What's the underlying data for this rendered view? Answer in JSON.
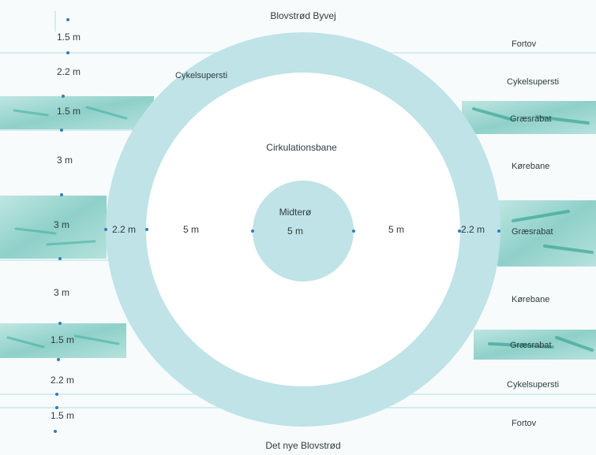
{
  "streets": {
    "top": "Blovstrød Byvej",
    "bottom": "Det nye Blovstrød"
  },
  "labels": {
    "cycle_path_ring": "Cykelsupersti",
    "circulation_lane": "Cirkulationsbane",
    "center_island": "Midterø",
    "center_island_width": "5 m",
    "lane_width_left": "5 m",
    "lane_width_right": "5 m",
    "ring_width_left": "2.2 m",
    "ring_width_right": "2.2 m"
  },
  "left_widths": [
    "1.5 m",
    "2.2 m",
    "1.5 m",
    "3 m",
    "3 m",
    "3 m",
    "1.5 m",
    "2.2 m",
    "1.5 m"
  ],
  "right_labels": [
    "Fortov",
    "Cykelsupersti",
    "Græsrabat",
    "Kørebane",
    "Græsrabat",
    "Kørebane",
    "Græsrabat",
    "Cykelsupersti",
    "Fortov"
  ],
  "colors": {
    "background": "#f7fbfb",
    "ring": "#bfe3e6",
    "grass": "#9fd6d2",
    "grass_dark": "#3cae9e",
    "dot": "#2f7fb8",
    "lines": "#d4ecee"
  }
}
